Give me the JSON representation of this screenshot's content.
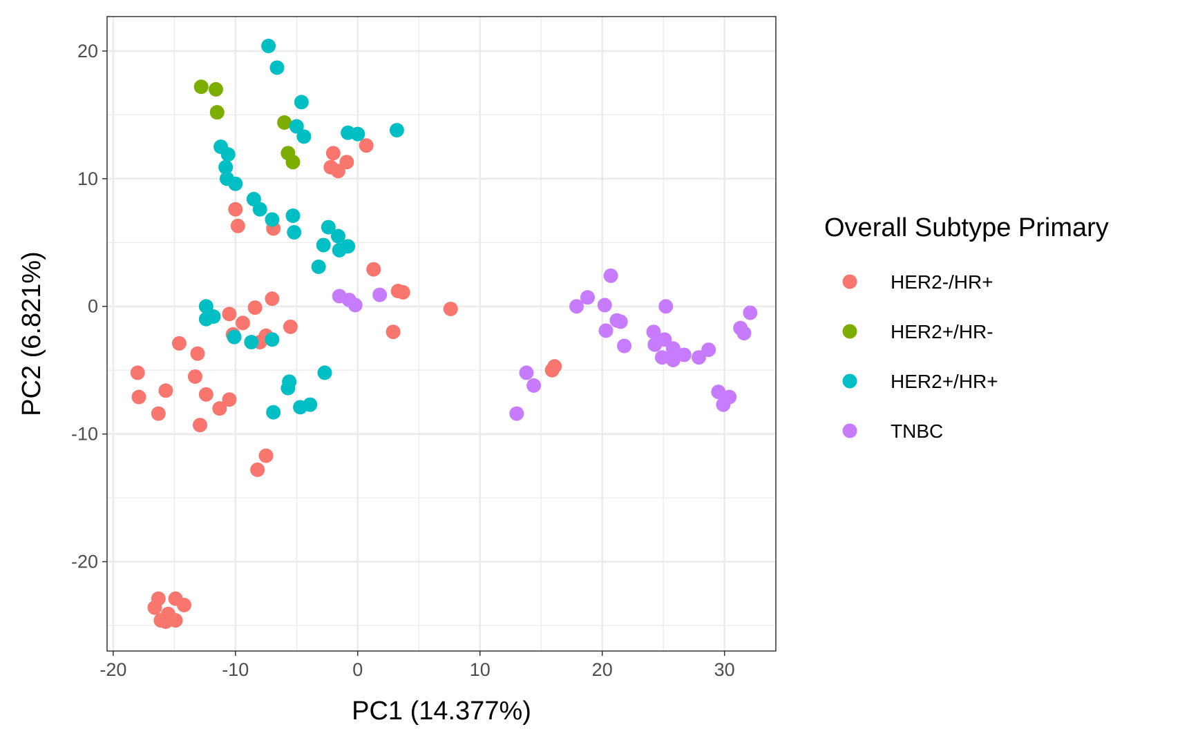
{
  "chart_data": {
    "type": "scatter",
    "title": "",
    "xlabel": "PC1 (14.377%)",
    "ylabel": "PC2 (6.821%)",
    "xlim": [
      -20.5,
      34.2
    ],
    "ylim": [
      -27,
      22.7
    ],
    "x_ticks": [
      -20,
      -10,
      0,
      10,
      20,
      30
    ],
    "x_tick_labels": [
      "-20",
      "-10",
      "0",
      "10",
      "20",
      "30"
    ],
    "y_ticks": [
      -20,
      -10,
      0,
      10,
      20
    ],
    "y_tick_labels": [
      "-20",
      "-10",
      "0",
      "10",
      "20"
    ],
    "grid": true,
    "legend": {
      "title": "Overall Subtype Primary",
      "placement": "right"
    },
    "series": [
      {
        "name": "HER2-/HR+",
        "color": "#F8766D",
        "points": [
          [
            -2.0,
            12.0
          ],
          [
            0.7,
            12.6
          ],
          [
            -2.2,
            10.9
          ],
          [
            -1.6,
            10.6
          ],
          [
            -0.9,
            11.3
          ],
          [
            -10.0,
            7.6
          ],
          [
            -9.8,
            6.3
          ],
          [
            -6.9,
            6.1
          ],
          [
            1.3,
            2.9
          ],
          [
            3.3,
            1.2
          ],
          [
            3.7,
            1.1
          ],
          [
            7.6,
            -0.2
          ],
          [
            2.9,
            -2.0
          ],
          [
            -7.0,
            0.6
          ],
          [
            -8.4,
            -0.1
          ],
          [
            -10.5,
            -0.6
          ],
          [
            -9.4,
            -1.3
          ],
          [
            -10.2,
            -2.2
          ],
          [
            -5.5,
            -1.6
          ],
          [
            -8.0,
            -2.8
          ],
          [
            -7.5,
            -2.3
          ],
          [
            -14.6,
            -2.9
          ],
          [
            -13.1,
            -3.7
          ],
          [
            -13.3,
            -5.5
          ],
          [
            -12.4,
            -6.9
          ],
          [
            -10.5,
            -7.3
          ],
          [
            -11.3,
            -8.0
          ],
          [
            -15.7,
            -6.6
          ],
          [
            -18.0,
            -5.2
          ],
          [
            -17.9,
            -7.1
          ],
          [
            -16.3,
            -8.4
          ],
          [
            -12.9,
            -9.3
          ],
          [
            -7.5,
            -11.7
          ],
          [
            -8.2,
            -12.8
          ],
          [
            16.1,
            -4.7
          ],
          [
            15.9,
            -5.0
          ],
          [
            -16.3,
            -22.9
          ],
          [
            -14.9,
            -22.9
          ],
          [
            -14.2,
            -23.4
          ],
          [
            -16.6,
            -23.6
          ],
          [
            -15.5,
            -24.1
          ],
          [
            -16.1,
            -24.6
          ],
          [
            -15.7,
            -24.7
          ],
          [
            -14.9,
            -24.6
          ]
        ]
      },
      {
        "name": "HER2+/HR-",
        "color": "#7CAE00",
        "points": [
          [
            -12.8,
            17.2
          ],
          [
            -11.6,
            17.0
          ],
          [
            -11.5,
            15.2
          ],
          [
            -6.0,
            14.4
          ],
          [
            -5.7,
            12.0
          ],
          [
            -5.3,
            11.3
          ]
        ]
      },
      {
        "name": "HER2+/HR+",
        "color": "#00BFC4",
        "points": [
          [
            -7.3,
            20.4
          ],
          [
            -6.6,
            18.7
          ],
          [
            -4.6,
            16.0
          ],
          [
            -5.0,
            14.1
          ],
          [
            -4.4,
            13.3
          ],
          [
            -0.8,
            13.6
          ],
          [
            0.0,
            13.5
          ],
          [
            3.2,
            13.8
          ],
          [
            -11.2,
            12.5
          ],
          [
            -10.6,
            11.9
          ],
          [
            -10.8,
            10.9
          ],
          [
            -10.7,
            10.0
          ],
          [
            -10.0,
            9.6
          ],
          [
            -8.5,
            8.4
          ],
          [
            -8.0,
            7.6
          ],
          [
            -7.0,
            6.8
          ],
          [
            -5.3,
            7.1
          ],
          [
            -5.2,
            5.8
          ],
          [
            -2.4,
            6.2
          ],
          [
            -1.6,
            5.5
          ],
          [
            -2.8,
            4.8
          ],
          [
            -1.5,
            4.4
          ],
          [
            -0.8,
            4.7
          ],
          [
            -3.2,
            3.1
          ],
          [
            -12.4,
            0.0
          ],
          [
            -12.4,
            -1.0
          ],
          [
            -11.8,
            -0.8
          ],
          [
            -10.1,
            -2.4
          ],
          [
            -8.7,
            -2.8
          ],
          [
            -7.0,
            -2.6
          ],
          [
            -5.6,
            -5.9
          ],
          [
            -5.7,
            -6.4
          ],
          [
            -2.7,
            -5.2
          ],
          [
            -4.7,
            -7.9
          ],
          [
            -3.9,
            -7.7
          ],
          [
            -6.9,
            -8.3
          ]
        ]
      },
      {
        "name": "TNBC",
        "color": "#C77CFF",
        "points": [
          [
            20.7,
            2.4
          ],
          [
            -1.5,
            0.8
          ],
          [
            -0.7,
            0.5
          ],
          [
            -0.2,
            0.1
          ],
          [
            1.8,
            0.9
          ],
          [
            18.8,
            0.7
          ],
          [
            17.9,
            0.0
          ],
          [
            20.2,
            0.1
          ],
          [
            21.2,
            -1.1
          ],
          [
            21.5,
            -1.2
          ],
          [
            20.3,
            -1.9
          ],
          [
            21.8,
            -3.1
          ],
          [
            24.2,
            -2.0
          ],
          [
            25.2,
            0.0
          ],
          [
            24.3,
            -3.0
          ],
          [
            25.1,
            -2.6
          ],
          [
            25.8,
            -3.3
          ],
          [
            24.9,
            -4.0
          ],
          [
            25.8,
            -4.2
          ],
          [
            26.7,
            -3.8
          ],
          [
            27.9,
            -4.0
          ],
          [
            28.7,
            -3.4
          ],
          [
            31.3,
            -1.7
          ],
          [
            31.6,
            -2.1
          ],
          [
            32.1,
            -0.5
          ],
          [
            29.5,
            -6.7
          ],
          [
            29.9,
            -7.7
          ],
          [
            30.4,
            -7.1
          ],
          [
            13.8,
            -5.2
          ],
          [
            14.4,
            -6.2
          ],
          [
            13.0,
            -8.4
          ]
        ]
      }
    ]
  }
}
